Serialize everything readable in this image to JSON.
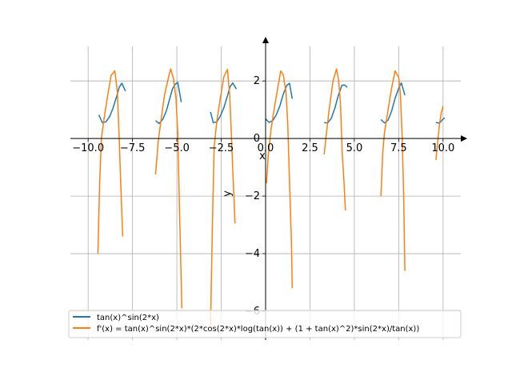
{
  "chart_data": {
    "type": "line",
    "title": "",
    "xlabel": "x",
    "ylabel": "y",
    "xlim": [
      -11,
      11
    ],
    "ylim": [
      -7,
      3.2
    ],
    "grid": true,
    "legend_position": "bottom",
    "x_ticks": [
      -10.0,
      -7.5,
      -5.0,
      -2.5,
      0.0,
      2.5,
      5.0,
      7.5,
      10.0
    ],
    "x_tick_labels": [
      "−10.0",
      "−7.5",
      "−5.0",
      "−2.5",
      "0.0",
      "2.5",
      "5.0",
      "7.5",
      "10.0"
    ],
    "y_ticks": [
      -6,
      -4,
      -2,
      0,
      2
    ],
    "y_tick_labels": [
      "−6",
      "−4",
      "−2",
      "0",
      "2"
    ],
    "series": [
      {
        "name": "tan(x)^sin(2*x)",
        "color": "#1f77b4",
        "segments": [
          [
            [
              -9.4,
              0.82
            ],
            [
              -9.2,
              0.55
            ],
            [
              -9.0,
              0.58
            ],
            [
              -8.8,
              0.75
            ],
            [
              -8.6,
              1.05
            ],
            [
              -8.4,
              1.45
            ],
            [
              -8.25,
              1.78
            ],
            [
              -8.1,
              1.92
            ],
            [
              -7.9,
              1.65
            ]
          ],
          [
            [
              -6.2,
              0.62
            ],
            [
              -6.0,
              0.52
            ],
            [
              -5.8,
              0.66
            ],
            [
              -5.6,
              0.95
            ],
            [
              -5.4,
              1.38
            ],
            [
              -5.25,
              1.72
            ],
            [
              -5.1,
              1.88
            ],
            [
              -4.95,
              1.95
            ],
            [
              -4.75,
              1.26
            ]
          ],
          [
            [
              -3.1,
              0.92
            ],
            [
              -2.95,
              0.55
            ],
            [
              -2.75,
              0.58
            ],
            [
              -2.55,
              0.78
            ],
            [
              -2.35,
              1.08
            ],
            [
              -2.15,
              1.48
            ],
            [
              -2.0,
              1.8
            ],
            [
              -1.85,
              1.93
            ],
            [
              -1.65,
              1.72
            ]
          ],
          [
            [
              0.0,
              0.68
            ],
            [
              0.2,
              0.56
            ],
            [
              0.4,
              0.62
            ],
            [
              0.6,
              0.82
            ],
            [
              0.8,
              1.12
            ],
            [
              1.0,
              1.55
            ],
            [
              1.2,
              1.85
            ],
            [
              1.35,
              1.92
            ],
            [
              1.5,
              1.38
            ]
          ],
          [
            [
              3.3,
              0.55
            ],
            [
              3.5,
              0.54
            ],
            [
              3.7,
              0.7
            ],
            [
              3.9,
              1.05
            ],
            [
              4.1,
              1.5
            ],
            [
              4.3,
              1.85
            ],
            [
              4.45,
              1.86
            ],
            [
              4.6,
              1.78
            ]
          ],
          [
            [
              6.5,
              0.66
            ],
            [
              6.7,
              0.54
            ],
            [
              6.9,
              0.64
            ],
            [
              7.1,
              0.95
            ],
            [
              7.3,
              1.4
            ],
            [
              7.5,
              1.75
            ],
            [
              7.65,
              1.93
            ],
            [
              7.85,
              1.5
            ]
          ],
          [
            [
              9.6,
              0.56
            ],
            [
              9.8,
              0.53
            ],
            [
              10.0,
              0.68
            ],
            [
              10.1,
              0.72
            ]
          ]
        ]
      },
      {
        "name": "f'(x) = tan(x)^sin(2*x)*(2*cos(2*x)*log(tan(x)) + (1 + tan(x)^2)*sin(2*x)/tan(x))",
        "color": "#ff7f0e",
        "segments": [
          [
            [
              -9.45,
              -4.0
            ],
            [
              -9.35,
              -1.5
            ],
            [
              -9.25,
              0.0
            ],
            [
              -9.1,
              0.7
            ],
            [
              -8.9,
              1.5
            ],
            [
              -8.7,
              2.2
            ],
            [
              -8.5,
              2.35
            ],
            [
              -8.35,
              1.6
            ],
            [
              -8.25,
              0.0
            ],
            [
              -8.15,
              -1.8
            ],
            [
              -8.05,
              -3.4
            ]
          ],
          [
            [
              -6.2,
              -1.25
            ],
            [
              -6.05,
              -0.1
            ],
            [
              -5.9,
              0.6
            ],
            [
              -5.7,
              1.5
            ],
            [
              -5.5,
              2.05
            ],
            [
              -5.35,
              2.42
            ],
            [
              -5.2,
              2.1
            ],
            [
              -5.05,
              1.4
            ],
            [
              -4.95,
              0.2
            ],
            [
              -4.85,
              -2.5
            ],
            [
              -4.72,
              -5.9
            ]
          ],
          [
            [
              -3.1,
              -6.5
            ],
            [
              -3.0,
              -3.0
            ],
            [
              -2.9,
              -0.3
            ],
            [
              -2.75,
              0.6
            ],
            [
              -2.55,
              1.4
            ],
            [
              -2.35,
              2.15
            ],
            [
              -2.15,
              2.4
            ],
            [
              -2.02,
              1.5
            ],
            [
              -1.92,
              0.0
            ],
            [
              -1.82,
              -1.5
            ],
            [
              -1.72,
              -2.95
            ]
          ],
          [
            [
              0.05,
              -1.55
            ],
            [
              0.15,
              -0.6
            ],
            [
              0.3,
              0.3
            ],
            [
              0.5,
              1.1
            ],
            [
              0.7,
              1.8
            ],
            [
              0.85,
              2.35
            ],
            [
              1.0,
              2.2
            ],
            [
              1.15,
              1.6
            ],
            [
              1.25,
              0.5
            ],
            [
              1.35,
              -1.5
            ],
            [
              1.45,
              -3.5
            ],
            [
              1.5,
              -5.2
            ]
          ],
          [
            [
              3.3,
              -0.55
            ],
            [
              3.45,
              0.3
            ],
            [
              3.6,
              1.1
            ],
            [
              3.8,
              2.0
            ],
            [
              4.0,
              2.42
            ],
            [
              4.12,
              2.0
            ],
            [
              4.22,
              1.2
            ],
            [
              4.32,
              -0.5
            ],
            [
              4.42,
              -1.5
            ],
            [
              4.5,
              -2.5
            ]
          ],
          [
            [
              6.5,
              -2.0
            ],
            [
              6.6,
              -0.5
            ],
            [
              6.7,
              0.2
            ],
            [
              6.9,
              1.0
            ],
            [
              7.1,
              1.75
            ],
            [
              7.3,
              2.35
            ],
            [
              7.5,
              2.12
            ],
            [
              7.6,
              1.5
            ],
            [
              7.7,
              0.0
            ],
            [
              7.78,
              -2.0
            ],
            [
              7.85,
              -4.6
            ]
          ],
          [
            [
              9.6,
              -0.75
            ],
            [
              9.7,
              -0.1
            ],
            [
              9.8,
              0.5
            ],
            [
              9.9,
              0.9
            ],
            [
              10.0,
              1.12
            ]
          ]
        ]
      }
    ]
  }
}
